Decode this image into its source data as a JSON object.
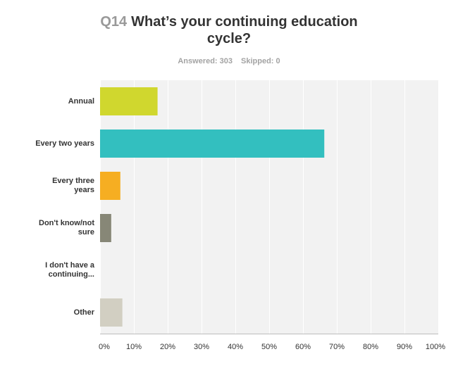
{
  "header": {
    "question_number": "Q14",
    "question_text_line1": "What’s your continuing education",
    "question_text_line2": "cycle?"
  },
  "stats": {
    "answered": "Answered: 303",
    "skipped": "Skipped: 0"
  },
  "chart_data": {
    "type": "bar",
    "orientation": "horizontal",
    "categories": [
      "Annual",
      "Every two years",
      "Every three years",
      "Don't know/not sure",
      "I don't have a continuing...",
      "Other"
    ],
    "category_labels": [
      [
        "Annual"
      ],
      [
        "Every two years"
      ],
      [
        "Every three",
        "years"
      ],
      [
        "Don't know/not",
        "sure"
      ],
      [
        "I don't have a",
        "continuing..."
      ],
      [
        "Other"
      ]
    ],
    "values": [
      17,
      66.3,
      6,
      3.3,
      0,
      6.6
    ],
    "colors": [
      "#d0d72e",
      "#33bfbf",
      "#f6ae22",
      "#878777",
      "#cccccc",
      "#d2cfc2"
    ],
    "x_ticks": [
      "0%",
      "10%",
      "20%",
      "30%",
      "40%",
      "50%",
      "60%",
      "70%",
      "80%",
      "90%",
      "100%"
    ],
    "xlim": [
      0,
      100
    ],
    "grid": true,
    "background": "#f2f2f2"
  }
}
